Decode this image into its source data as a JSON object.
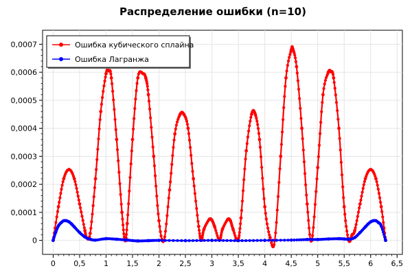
{
  "chart_data": {
    "type": "line",
    "title": "Распределение ошибки (n=10)",
    "xlabel": "",
    "ylabel": "",
    "xlim": [
      -0.2,
      6.6
    ],
    "ylim": [
      -5e-05,
      0.00075
    ],
    "x_ticks": [
      0,
      0.5,
      1,
      1.5,
      2,
      2.5,
      3,
      3.5,
      4,
      4.5,
      5,
      5.5,
      6,
      6.5
    ],
    "x_tick_labels": [
      "0",
      "0,5",
      "1",
      "1,5",
      "2",
      "2,5",
      "3",
      "3,5",
      "4",
      "4,5",
      "5",
      "5,5",
      "6",
      "6,5"
    ],
    "y_ticks": [
      0,
      0.0001,
      0.0002,
      0.0003,
      0.0004,
      0.0005,
      0.0006,
      0.0007
    ],
    "y_tick_labels": [
      "0",
      "0,0001",
      "0,0002",
      "0,0003",
      "0,0004",
      "0,0005",
      "0,0006",
      "0,0007"
    ],
    "grid": true,
    "legend_position": "top-left",
    "series": [
      {
        "name": "Ошибка кубического сплайна",
        "color": "#ff0000",
        "marker": "circle",
        "x": [
          0,
          0.1,
          0.2,
          0.3,
          0.4,
          0.5,
          0.6,
          0.628,
          0.7,
          0.8,
          0.9,
          1.0,
          1.05,
          1.1,
          1.2,
          1.3,
          1.357,
          1.4,
          1.5,
          1.6,
          1.7,
          1.75,
          1.8,
          1.9,
          2.0,
          2.094,
          2.2,
          2.3,
          2.4,
          2.47,
          2.55,
          2.65,
          2.75,
          2.8,
          2.85,
          2.95,
          3.0,
          3.05,
          3.142,
          3.2,
          3.3,
          3.35,
          3.4,
          3.49,
          3.55,
          3.65,
          3.75,
          3.82,
          3.9,
          4.0,
          4.1,
          4.189,
          4.3,
          4.4,
          4.5,
          4.53,
          4.6,
          4.7,
          4.8,
          4.887,
          5.0,
          5.1,
          5.2,
          5.25,
          5.3,
          5.4,
          5.5,
          5.585,
          5.65,
          5.7,
          5.8,
          5.9,
          6.0,
          6.1,
          6.2,
          6.283
        ],
        "y": [
          0,
          0.00012,
          0.00022,
          0.000253,
          0.00022,
          0.00013,
          3.5e-05,
          1e-05,
          2.5e-05,
          0.00022,
          0.00046,
          0.000595,
          0.000605,
          0.00058,
          0.00036,
          0.0001,
          0,
          6e-05,
          0.00036,
          0.00058,
          0.000595,
          0.00058,
          0.00052,
          0.0003,
          7e-05,
          0,
          0.00018,
          0.00038,
          0.00045,
          0.00045,
          0.0004,
          0.00022,
          5e-05,
          0,
          4e-05,
          7.5e-05,
          7.2e-05,
          5e-05,
          0,
          4e-05,
          7.5e-05,
          7e-05,
          4e-05,
          0,
          8e-05,
          0.00032,
          0.00045,
          0.00045,
          0.00036,
          0.00012,
          1e-05,
          0,
          0.0003,
          0.00058,
          0.00068,
          0.000683,
          0.00062,
          0.0004,
          0.00013,
          0,
          0.00026,
          0.00052,
          0.0006,
          0.000602,
          0.00058,
          0.0004,
          0.00012,
          0,
          2e-05,
          3.5e-05,
          0.00013,
          0.00022,
          0.000253,
          0.00022,
          0.00012,
          0
        ]
      },
      {
        "name": "Ошибка Лагранжа",
        "color": "#0000ff",
        "marker": "circle",
        "x": [
          0,
          0.05,
          0.1,
          0.15,
          0.2,
          0.25,
          0.3,
          0.35,
          0.4,
          0.5,
          0.6,
          0.7,
          0.8,
          1.0,
          1.2,
          1.4,
          1.6,
          1.8,
          2.0,
          2.5,
          3.0,
          3.5,
          4.0,
          4.5,
          4.8,
          5.0,
          5.2,
          5.4,
          5.5,
          5.6,
          5.7,
          5.8,
          5.9,
          5.95,
          6.0,
          6.05,
          6.1,
          6.15,
          6.2,
          6.283
        ],
        "y": [
          0,
          3e-05,
          5.2e-05,
          6.3e-05,
          7e-05,
          7e-05,
          6.6e-05,
          5.8e-05,
          4.8e-05,
          2.8e-05,
          1.2e-05,
          4e-06,
          1e-06,
          6e-06,
          4e-06,
          1e-06,
          -2e-06,
          -1e-06,
          0,
          -1e-06,
          0,
          -1e-06,
          0,
          1e-06,
          3e-06,
          3e-06,
          5e-06,
          6e-06,
          5e-06,
          4e-06,
          1e-05,
          2.8e-05,
          4.8e-05,
          5.8e-05,
          6.6e-05,
          7e-05,
          7e-05,
          6.3e-05,
          5.2e-05,
          0
        ]
      }
    ]
  }
}
